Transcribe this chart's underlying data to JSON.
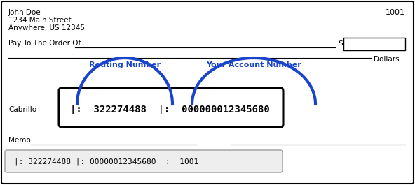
{
  "name": "John Doe",
  "address1": "1234 Main Street",
  "address2": "Anywhere, US 12345",
  "check_number": "1001",
  "pay_to_label": "Pay To The Order Of",
  "dollar_sign": "$",
  "dollars_label": "Dollars",
  "cabrillo_label": "Cabrillo",
  "memo_label": "Memo",
  "routing_label": "Routing Number",
  "account_label": "Your Account Number",
  "micr_line_box": "|:  322274488  |:  000000012345680",
  "micr_line_bottom": "|: 322274488 |: 00000012345680 |:  1001",
  "bg_color": "#ffffff",
  "border_color": "#000000",
  "blue_color": "#1a44cc",
  "text_color": "#000000",
  "gray_border": "#aaaaaa",
  "bottom_bg": "#eeeeee",
  "figw": 5.92,
  "figh": 2.65,
  "dpi": 100
}
